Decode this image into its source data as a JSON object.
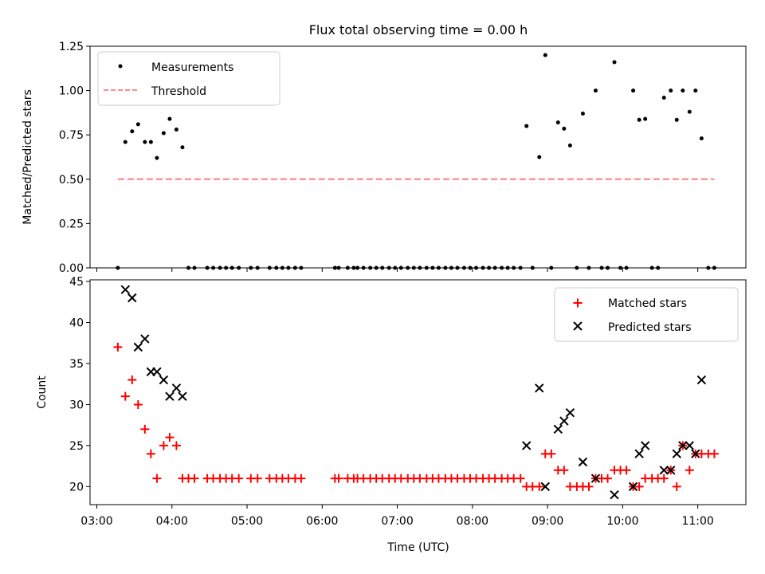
{
  "chart_data": [
    {
      "type": "scatter",
      "title": "Flux total observing time = 0.00 h",
      "xlabel": "",
      "ylabel": "Matched/Predicted stars",
      "x_unit": "hours (UTC)",
      "xlim": [
        2.91,
        11.64
      ],
      "ylim": [
        0,
        1.25
      ],
      "yticks": [
        "0.00",
        "0.25",
        "0.50",
        "0.75",
        "1.00",
        "1.25"
      ],
      "legend_position": "upper-left",
      "series": [
        {
          "name": "Measurements",
          "color": "#000000",
          "marker": "dot",
          "x": [
            3.28,
            3.38,
            3.47,
            3.55,
            3.64,
            3.72,
            3.8,
            3.89,
            3.97,
            4.06,
            4.14,
            4.22,
            4.3,
            4.47,
            4.55,
            4.64,
            4.72,
            4.8,
            4.89,
            5.05,
            5.14,
            5.3,
            5.39,
            5.47,
            5.55,
            5.64,
            5.72,
            6.17,
            6.22,
            6.34,
            6.42,
            6.47,
            6.55,
            6.64,
            6.72,
            6.8,
            6.89,
            6.97,
            7.05,
            7.14,
            7.22,
            7.3,
            7.39,
            7.47,
            7.55,
            7.64,
            7.72,
            7.8,
            7.89,
            7.97,
            8.05,
            8.14,
            8.22,
            8.3,
            8.39,
            8.47,
            8.55,
            8.64,
            8.72,
            8.8,
            8.89,
            8.97,
            9.05,
            9.14,
            9.22,
            9.3,
            9.39,
            9.47,
            9.55,
            9.64,
            9.72,
            9.8,
            9.89,
            9.97,
            10.05,
            10.14,
            10.22,
            10.3,
            10.39,
            10.47,
            10.55,
            10.64,
            10.72,
            10.8,
            10.89,
            10.97,
            11.05,
            11.14,
            11.22
          ],
          "y": [
            0.0,
            0.71,
            0.77,
            0.81,
            0.71,
            0.71,
            0.62,
            0.76,
            0.84,
            0.78,
            0.68,
            0.0,
            0.0,
            0.0,
            0.0,
            0.0,
            0.0,
            0.0,
            0.0,
            0.0,
            0.0,
            0.0,
            0.0,
            0.0,
            0.0,
            0.0,
            0.0,
            0.0,
            0.0,
            0.0,
            0.0,
            0.0,
            0.0,
            0.0,
            0.0,
            0.0,
            0.0,
            0.0,
            0.0,
            0.0,
            0.0,
            0.0,
            0.0,
            0.0,
            0.0,
            0.0,
            0.0,
            0.0,
            0.0,
            0.0,
            0.0,
            0.0,
            0.0,
            0.0,
            0.0,
            0.0,
            0.0,
            0.0,
            0.8,
            0.0,
            0.625,
            1.2,
            0.0,
            0.82,
            0.785,
            0.69,
            0.0,
            0.87,
            0.0,
            1.0,
            0.0,
            0.0,
            1.16,
            0.0,
            0.0,
            1.0,
            0.835,
            0.84,
            0.0,
            0.0,
            0.96,
            1.0,
            0.835,
            1.0,
            0.88,
            1.0,
            0.73,
            0.0,
            0.0
          ]
        },
        {
          "name": "Threshold",
          "color": "#ff7f7f",
          "style": "dashed",
          "x": [
            3.28,
            11.22
          ],
          "y": [
            0.5,
            0.5
          ]
        }
      ]
    },
    {
      "type": "scatter",
      "title": "",
      "xlabel": "Time (UTC)",
      "ylabel": "Count",
      "x_unit": "hours (UTC)",
      "xlim": [
        2.91,
        11.64
      ],
      "ylim": [
        17.8,
        45.2
      ],
      "xticks": [
        "03:00",
        "04:00",
        "05:00",
        "06:00",
        "07:00",
        "08:00",
        "09:00",
        "10:00",
        "11:00"
      ],
      "yticks": [
        "20",
        "25",
        "30",
        "35",
        "40",
        "45"
      ],
      "legend_position": "upper-right",
      "series": [
        {
          "name": "Matched stars",
          "color": "#ff0000",
          "marker": "plus",
          "x": [
            3.28,
            3.38,
            3.47,
            3.55,
            3.64,
            3.72,
            3.8,
            3.89,
            3.97,
            4.06,
            4.14,
            4.22,
            4.3,
            4.47,
            4.55,
            4.64,
            4.72,
            4.8,
            4.89,
            5.05,
            5.14,
            5.3,
            5.39,
            5.47,
            5.55,
            5.64,
            5.72,
            6.17,
            6.22,
            6.34,
            6.42,
            6.47,
            6.55,
            6.64,
            6.72,
            6.8,
            6.89,
            6.97,
            7.05,
            7.14,
            7.22,
            7.3,
            7.39,
            7.47,
            7.55,
            7.64,
            7.72,
            7.8,
            7.89,
            7.97,
            8.05,
            8.14,
            8.22,
            8.3,
            8.39,
            8.47,
            8.55,
            8.64,
            8.72,
            8.8,
            8.89,
            8.97,
            9.05,
            9.14,
            9.22,
            9.3,
            9.39,
            9.47,
            9.55,
            9.64,
            9.72,
            9.8,
            9.89,
            9.97,
            10.05,
            10.14,
            10.22,
            10.3,
            10.39,
            10.47,
            10.55,
            10.64,
            10.72,
            10.8,
            10.89,
            10.97,
            11.05,
            11.14,
            11.22
          ],
          "y": [
            37,
            31,
            33,
            30,
            27,
            24,
            21,
            25,
            26,
            25,
            21,
            21,
            21,
            21,
            21,
            21,
            21,
            21,
            21,
            21,
            21,
            21,
            21,
            21,
            21,
            21,
            21,
            21,
            21,
            21,
            21,
            21,
            21,
            21,
            21,
            21,
            21,
            21,
            21,
            21,
            21,
            21,
            21,
            21,
            21,
            21,
            21,
            21,
            21,
            21,
            21,
            21,
            21,
            21,
            21,
            21,
            21,
            21,
            20,
            20,
            20,
            24,
            24,
            22,
            22,
            20,
            20,
            20,
            20,
            21,
            21,
            21,
            22,
            22,
            22,
            20,
            20,
            21,
            21,
            21,
            21,
            22,
            20,
            25,
            22,
            24,
            24,
            24,
            24
          ]
        },
        {
          "name": "Predicted stars",
          "color": "#000000",
          "marker": "x",
          "x": [
            3.38,
            3.47,
            3.55,
            3.64,
            3.72,
            3.8,
            3.89,
            3.97,
            4.06,
            4.14,
            8.72,
            8.89,
            8.97,
            9.14,
            9.22,
            9.3,
            9.47,
            9.64,
            9.89,
            10.14,
            10.22,
            10.3,
            10.55,
            10.64,
            10.72,
            10.8,
            10.89,
            10.97,
            11.05
          ],
          "y": [
            44,
            43,
            37,
            38,
            34,
            34,
            33,
            31,
            32,
            31,
            25,
            32,
            20,
            27,
            28,
            29,
            23,
            21,
            19,
            20,
            24,
            25,
            22,
            22,
            24,
            25,
            25,
            24,
            33
          ]
        }
      ]
    }
  ]
}
